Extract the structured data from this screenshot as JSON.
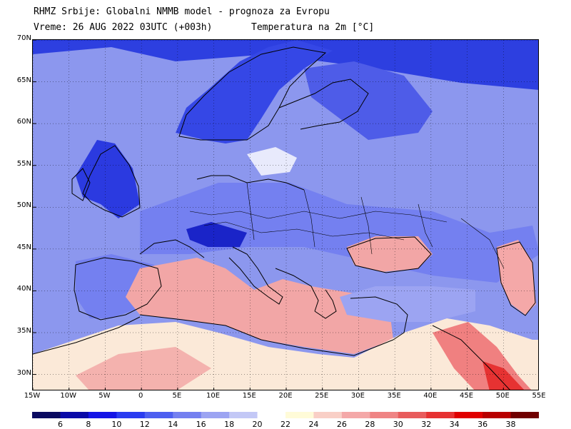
{
  "header": {
    "title_line1": "RHMZ Srbije: Globalni NMMB model - prognoza za Evropu",
    "title_line2_left": "Vreme: 26 AUG 2022 03UTC (+003h)",
    "title_line2_right": "Temperatura na 2m [°C]"
  },
  "map": {
    "lon_range": [
      -15,
      55
    ],
    "lat_range": [
      28,
      70
    ],
    "lat_labels": [
      "30N",
      "35N",
      "40N",
      "45N",
      "50N",
      "55N",
      "60N",
      "65N",
      "70N"
    ],
    "lat_values": [
      30,
      35,
      40,
      45,
      50,
      55,
      60,
      65,
      70
    ],
    "lon_labels": [
      "15W",
      "10W",
      "5W",
      "0",
      "5E",
      "10E",
      "15E",
      "20E",
      "25E",
      "30E",
      "35E",
      "40E",
      "45E",
      "50E",
      "55E"
    ],
    "lon_values": [
      -15,
      -10,
      -5,
      0,
      5,
      10,
      15,
      20,
      25,
      30,
      35,
      40,
      45,
      50,
      55
    ],
    "colors": {
      "sea_cool": "#8c97ee",
      "land_cool": "#3c4fe6",
      "warm_sea": "#f2a6a6",
      "hot": "#e84a4a",
      "coast": "#000000"
    }
  },
  "colorbar": {
    "labels": [
      "6",
      "8",
      "10",
      "12",
      "14",
      "16",
      "18",
      "20",
      "22",
      "24",
      "26",
      "28",
      "30",
      "32",
      "34",
      "36",
      "38"
    ],
    "colors": [
      "#0a0a60",
      "#0a0aa8",
      "#1414e6",
      "#2a3cf0",
      "#4d5ff0",
      "#7480f0",
      "#9ca4f2",
      "#c3c8f6",
      "#ffffff",
      "#fffbd8",
      "#f9cfc6",
      "#f4a8a8",
      "#ef8484",
      "#e85c5c",
      "#e63232",
      "#e00000",
      "#b80000",
      "#700000"
    ]
  }
}
